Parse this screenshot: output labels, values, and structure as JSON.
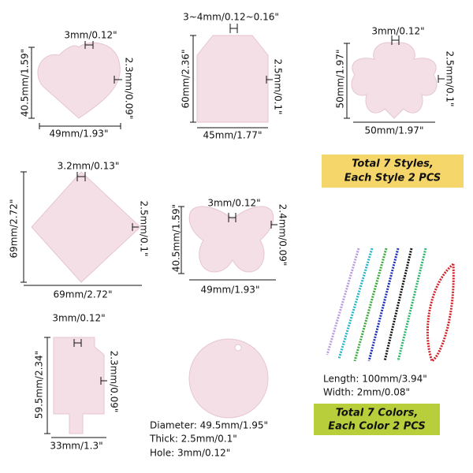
{
  "items": [
    {
      "shape": "heart",
      "hole": "3mm/0.12\"",
      "height": "40.5mm/1.59\"",
      "thickness": "2.3mm/0.09\"",
      "width": "49mm/1.93\""
    },
    {
      "shape": "tag",
      "hole": "3~4mm/0.12~0.16\"",
      "height": "60mm/2.36\"",
      "thickness": "2.5mm/0.1\"",
      "width": "45mm/1.77\""
    },
    {
      "shape": "flower",
      "hole": "3mm/0.12\"",
      "height": "50mm/1.97\"",
      "thickness": "2.5mm/0.1\"",
      "width": "50mm/1.97\""
    },
    {
      "shape": "rhombus",
      "hole": "3.2mm/0.13\"",
      "height": "69mm/2.72\"",
      "thickness": "2.5mm/0.1\"",
      "width": "69mm/2.72\""
    },
    {
      "shape": "butterfly",
      "hole": "3mm/0.12\"",
      "height": "40.5mm/1.59\"",
      "thickness": "2.4mm/0.09\"",
      "width": "49mm/1.93\""
    },
    {
      "shape": "bottle",
      "hole": "3mm/0.12\"",
      "height": "59.5mm/2.34\"",
      "thickness": "2.3mm/0.09\"",
      "width": "33mm/1.3\""
    }
  ],
  "circle": {
    "lines": [
      "Diameter: 49.5mm/1.95\"",
      "Thick: 2.5mm/0.1\"",
      "Hole: 3mm/0.12\""
    ]
  },
  "chain": {
    "lines": [
      "Length: 100mm/3.94\"",
      "Width: 2mm/0.08\""
    ]
  },
  "badges": [
    {
      "lines": [
        "Total 7 Styles,",
        "Each Style 2 PCS"
      ]
    },
    {
      "lines": [
        "Total 7 Colors,",
        "Each Color 2 PCS"
      ]
    }
  ]
}
